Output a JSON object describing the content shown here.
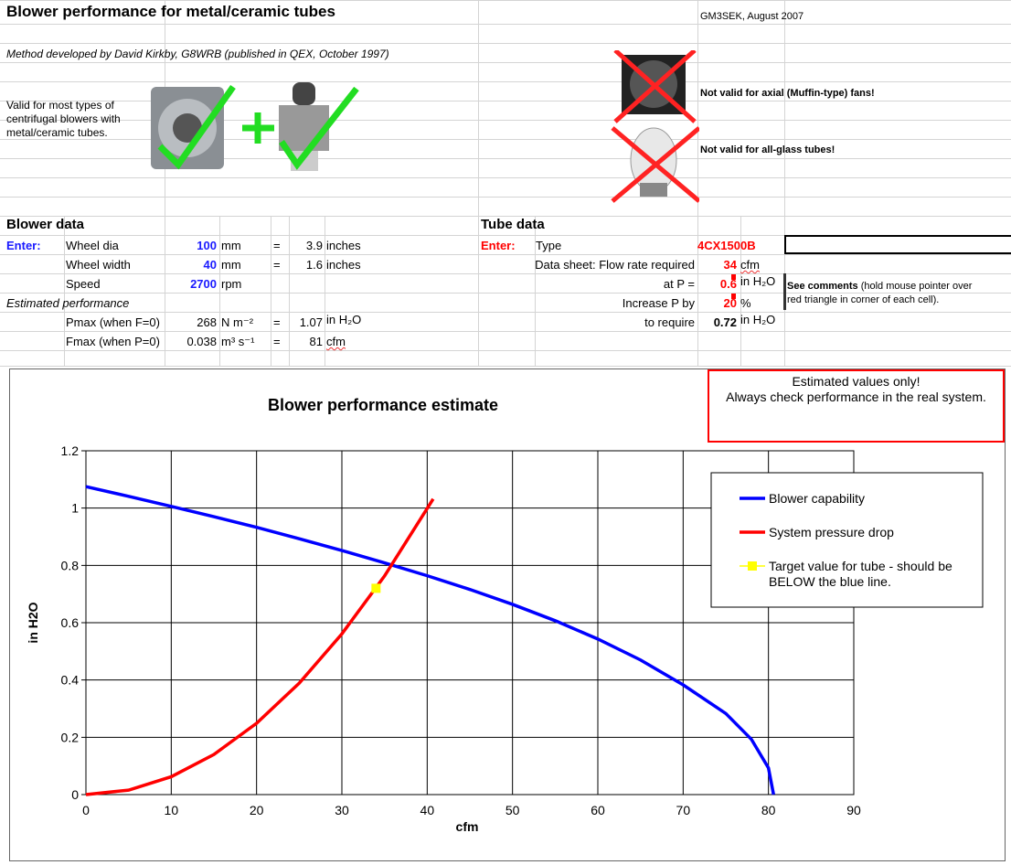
{
  "title": "Blower performance for metal/ceramic tubes",
  "author": "GM3SEK, August 2007",
  "method": "Method developed by David Kirkby, G8WRB (published in QEX, October 1997)",
  "valid_text": [
    "Valid for most types of",
    "centrifugal blowers with",
    "metal/ceramic tubes."
  ],
  "not_valid_axial": "Not valid for axial (Muffin-type) fans!",
  "not_valid_glass": "Not valid for all-glass tubes!",
  "blower": {
    "heading": "Blower data",
    "enter": "Enter:",
    "wheel_dia": {
      "label": "Wheel dia",
      "value": "100",
      "unit": "mm",
      "eq": "=",
      "conv": "3.9",
      "conv_unit": "inches"
    },
    "wheel_width": {
      "label": "Wheel width",
      "value": "40",
      "unit": "mm",
      "eq": "=",
      "conv": "1.6",
      "conv_unit": "inches"
    },
    "speed": {
      "label": "Speed",
      "value": "2700",
      "unit": "rpm"
    },
    "estimated": "Estimated performance",
    "pmax": {
      "label": "Pmax (when F=0)",
      "value": "268",
      "unit": "N m⁻²",
      "eq": "=",
      "conv": "1.07",
      "conv_unit": "in H₂O"
    },
    "fmax": {
      "label": "Fmax (when P=0)",
      "value": "0.038",
      "unit": "m³ s⁻¹",
      "eq": "=",
      "conv": "81",
      "conv_unit": "cfm"
    }
  },
  "tube": {
    "heading": "Tube data",
    "enter": "Enter:",
    "type": {
      "label": "Type",
      "value": "4CX1500B"
    },
    "flow": {
      "label": "Data sheet: Flow rate required",
      "value": "34",
      "unit": "cfm"
    },
    "atp": {
      "label": "at P =",
      "value": "0.6",
      "unit": "in H₂O"
    },
    "increase": {
      "label": "Increase P by",
      "value": "20",
      "unit": "%"
    },
    "require": {
      "label": "to require",
      "value": "0.72",
      "unit": "in H₂O"
    },
    "comments_bold": "See comments",
    "comments_rest": " (hold mouse pointer over",
    "comments_line2": "red triangle in corner of each cell)."
  },
  "warning": [
    "Estimated values only!",
    "Always check performance in the real system."
  ],
  "chart_data": {
    "type": "line",
    "title": "Blower performance estimate",
    "xlabel": "cfm",
    "ylabel": "in H2O",
    "xlim": [
      0,
      90
    ],
    "ylim": [
      0,
      1.2
    ],
    "xticks": [
      0,
      10,
      20,
      30,
      40,
      50,
      60,
      70,
      80,
      90
    ],
    "yticks": [
      "0",
      "0.2",
      "0.4",
      "0.6",
      "0.8",
      "1",
      "1.2"
    ],
    "grid": true,
    "legend_position": "top-right",
    "series": [
      {
        "name": "Blower capability",
        "color": "#0000ff",
        "x": [
          0,
          5,
          10,
          15,
          20,
          25,
          30,
          35,
          40,
          45,
          50,
          55,
          60,
          65,
          70,
          75,
          78,
          80,
          80.6
        ],
        "y": [
          1.075,
          1.041,
          1.006,
          0.97,
          0.933,
          0.893,
          0.852,
          0.809,
          0.764,
          0.716,
          0.664,
          0.607,
          0.543,
          0.47,
          0.383,
          0.283,
          0.193,
          0.093,
          0
        ]
      },
      {
        "name": "System pressure drop",
        "color": "#ff0000",
        "x": [
          0,
          5,
          10,
          15,
          20,
          25,
          30,
          35,
          40.7
        ],
        "y": [
          0,
          0.0156,
          0.0623,
          0.14,
          0.249,
          0.389,
          0.561,
          0.763,
          1.032
        ]
      },
      {
        "name": "Target value for tube - should be BELOW the blue line.",
        "legend_lines": [
          "Target value for tube - should be",
          "BELOW the blue line."
        ],
        "color": "#ffff00",
        "x": [
          34
        ],
        "y": [
          0.72
        ]
      }
    ]
  }
}
